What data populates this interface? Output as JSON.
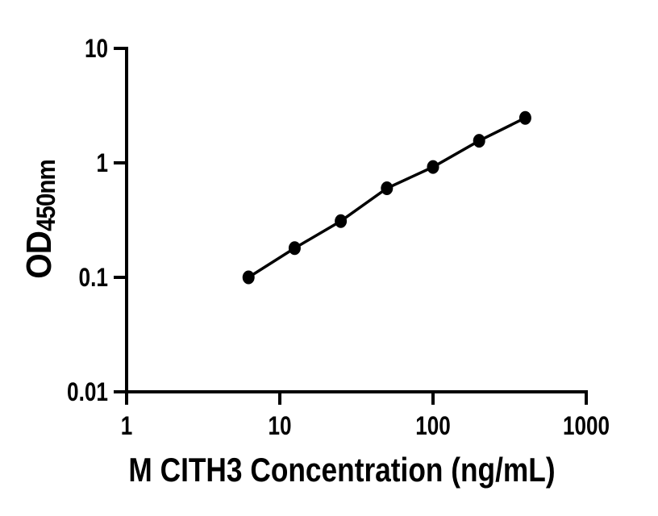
{
  "figure": {
    "background": "#ffffff"
  },
  "chart_data": {
    "type": "line",
    "marker": "circle",
    "title": "",
    "xlabel": "M CITH3 Concentration (ng/mL)",
    "ylabel_main": "OD",
    "ylabel_sub": "450nm",
    "xscale": "log",
    "yscale": "log",
    "xlim": [
      1,
      1000
    ],
    "ylim": [
      0.01,
      10
    ],
    "x": [
      6.25,
      12.5,
      25,
      50,
      100,
      200,
      400
    ],
    "y": [
      0.1,
      0.18,
      0.31,
      0.6,
      0.92,
      1.56,
      2.47
    ],
    "x_ticks": [
      1,
      10,
      100,
      1000
    ],
    "x_tick_labels": [
      "1",
      "10",
      "100",
      "1000"
    ],
    "y_ticks": [
      10,
      1,
      0.1,
      0.01
    ],
    "y_tick_labels": [
      "10",
      "1",
      "0.1",
      "0.01"
    ],
    "grid": false,
    "legend": null,
    "line_color": "#000000",
    "marker_color": "#000000",
    "axis_color": "#000000"
  }
}
